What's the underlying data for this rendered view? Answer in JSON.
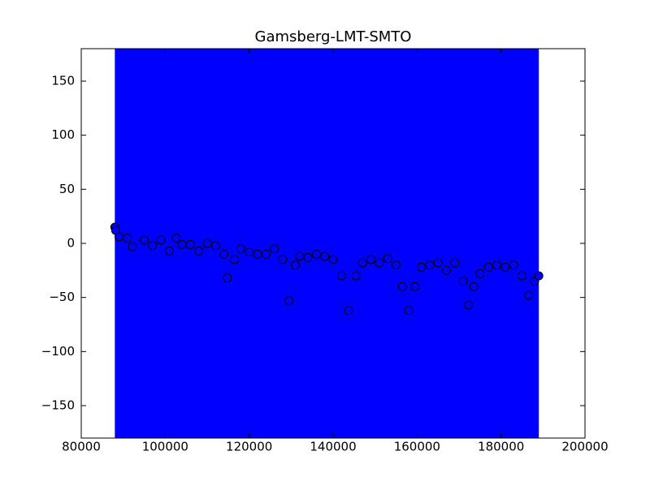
{
  "chart_data": {
    "type": "scatter",
    "title": "Gamsberg-LMT-SMTO",
    "x": [
      88000,
      88200,
      89000,
      91000,
      92200,
      95000,
      97000,
      99000,
      101000,
      102600,
      104000,
      106000,
      108000,
      110000,
      112000,
      114000,
      114800,
      116500,
      118000,
      120000,
      122000,
      124000,
      126000,
      128000,
      129500,
      131000,
      132000,
      134000,
      136000,
      138000,
      140000,
      142000,
      143700,
      145500,
      147000,
      149000,
      151000,
      153000,
      155000,
      156500,
      158000,
      159500,
      161000,
      163000,
      165000,
      167000,
      169000,
      171000,
      172300,
      173500,
      175000,
      177000,
      179000,
      181000,
      183000,
      185000,
      186600,
      188000,
      189000
    ],
    "values": [
      15,
      12,
      6,
      5,
      -3,
      3,
      -2,
      3,
      -7,
      5,
      -1,
      -1,
      -7,
      0,
      -2,
      -10,
      -32,
      -15,
      -5,
      -8,
      -10,
      -10,
      -5,
      -15,
      -53,
      -20,
      -12,
      -13,
      -10,
      -12,
      -15,
      -30,
      -62,
      -30,
      -18,
      -15,
      -18,
      -14,
      -20,
      -40,
      -62,
      -40,
      -22,
      -20,
      -18,
      -25,
      -18,
      -35,
      -57,
      -40,
      -28,
      -22,
      -20,
      -22,
      -20,
      -30,
      -48,
      -35,
      -30
    ],
    "color": "#0000ff",
    "edgecolor": "#000000",
    "span": {
      "xlim": [
        88000,
        189000
      ],
      "color": "#0000ff"
    },
    "xlim": [
      80000,
      200000
    ],
    "ylim": [
      -180,
      180
    ],
    "xticks": [
      80000,
      100000,
      120000,
      140000,
      160000,
      180000,
      200000
    ],
    "yticks": [
      {
        "value": -150,
        "label": "−150"
      },
      {
        "value": -100,
        "label": "−100"
      },
      {
        "value": -50,
        "label": "−50"
      },
      0,
      50,
      100,
      150
    ],
    "grid": false
  }
}
